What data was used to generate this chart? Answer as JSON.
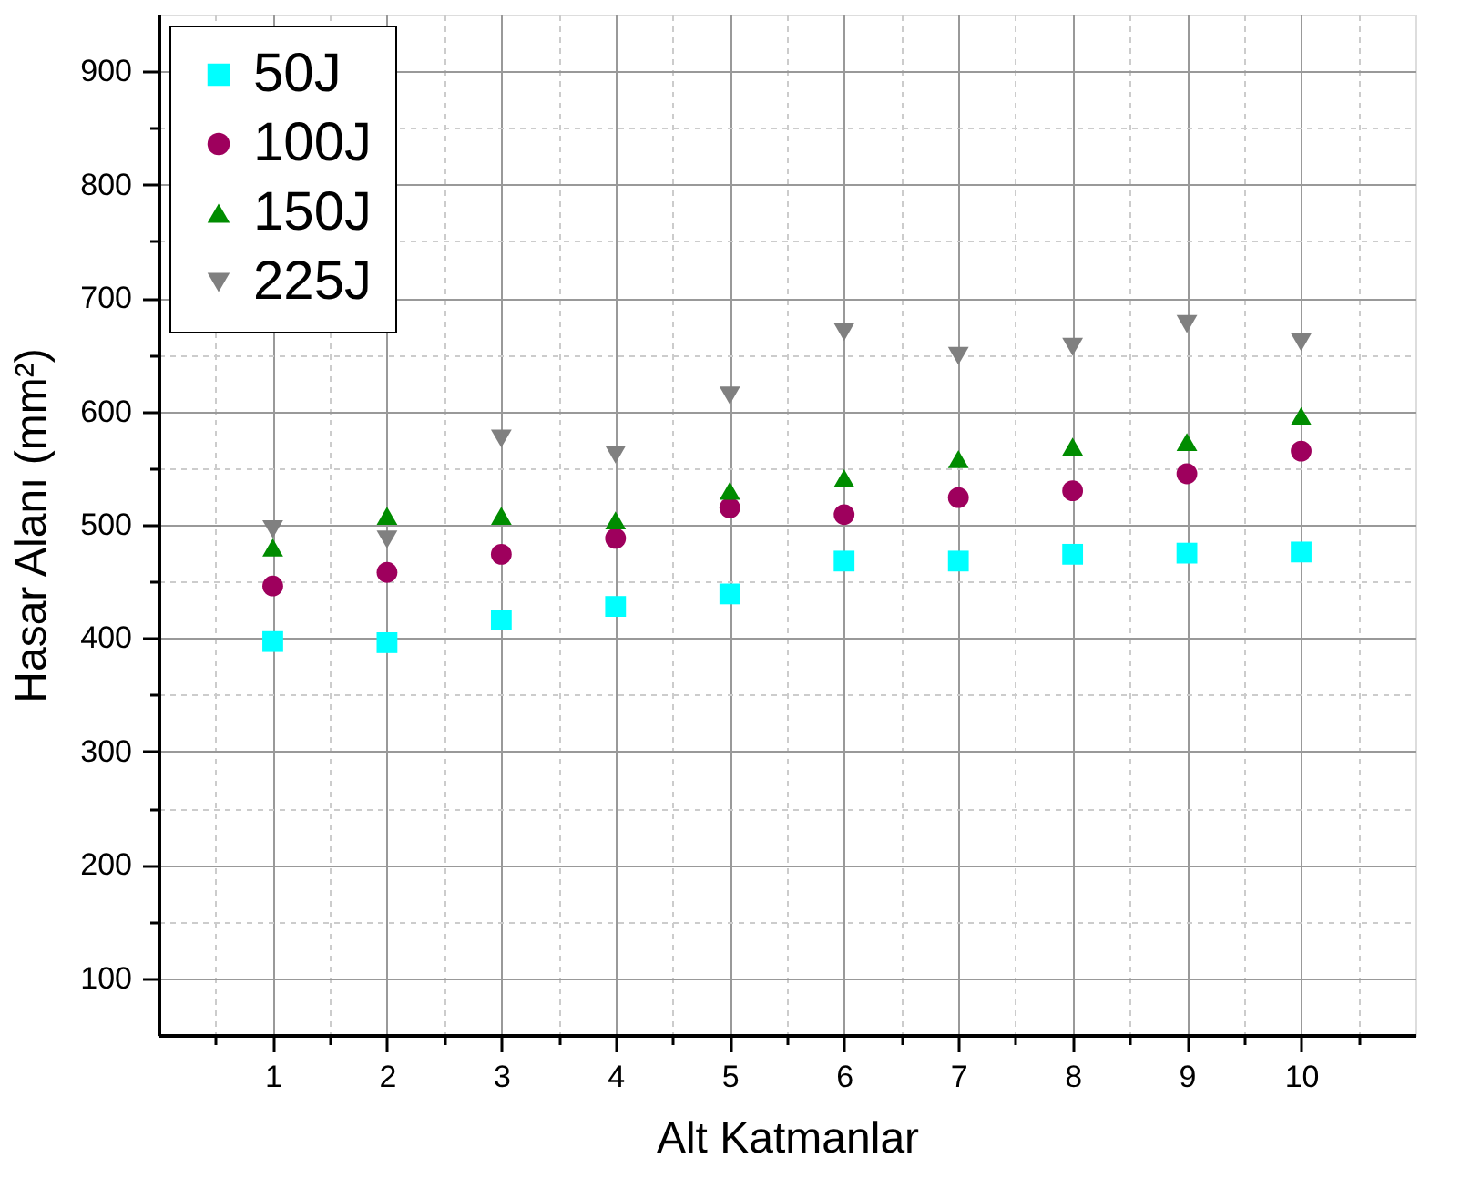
{
  "chart_data": {
    "type": "scatter",
    "xlabel": "Alt Katmanlar",
    "ylabel": "Hasar Alanı (mm²)",
    "x": [
      1,
      2,
      3,
      4,
      5,
      6,
      7,
      8,
      9,
      10
    ],
    "xlim": [
      0,
      11
    ],
    "ylim": [
      50,
      950
    ],
    "xticks": [
      {
        "value": 0.5,
        "label": null
      },
      1,
      {
        "value": 1.5,
        "label": null
      },
      2,
      {
        "value": 2.5,
        "label": null
      },
      3,
      {
        "value": 3.5,
        "label": null
      },
      4,
      {
        "value": 4.5,
        "label": null
      },
      5,
      {
        "value": 5.5,
        "label": null
      },
      6,
      {
        "value": 6.5,
        "label": null
      },
      7,
      {
        "value": 7.5,
        "label": null
      },
      8,
      {
        "value": 8.5,
        "label": null
      },
      9,
      {
        "value": 9.5,
        "label": null
      },
      10,
      {
        "value": 10.5,
        "label": null
      }
    ],
    "yticks": [
      100,
      {
        "value": 150,
        "label": null
      },
      200,
      {
        "value": 250,
        "label": null
      },
      300,
      {
        "value": 350,
        "label": null
      },
      400,
      {
        "value": 450,
        "label": null
      },
      500,
      {
        "value": 550,
        "label": null
      },
      600,
      {
        "value": 650,
        "label": null
      },
      700,
      {
        "value": 750,
        "label": null
      },
      800,
      {
        "value": 850,
        "label": null
      },
      900
    ],
    "grid": true,
    "legend": "top left",
    "series": [
      {
        "name": "50J",
        "color": "#00ffff",
        "marker": "square",
        "values": [
          397,
          396,
          416,
          428,
          439,
          468,
          468,
          474,
          475,
          476
        ]
      },
      {
        "name": "100J",
        "color": "#9e005d",
        "marker": "circle",
        "values": [
          446,
          458,
          474,
          488,
          515,
          509,
          524,
          530,
          545,
          565
        ]
      },
      {
        "name": "150J",
        "color": "#008c00",
        "marker": "triangle",
        "values": [
          480,
          508,
          508,
          504,
          530,
          541,
          558,
          569,
          573,
          596
        ]
      },
      {
        "name": "225J",
        "color": "#808080",
        "marker": "triangle-down",
        "values": [
          496,
          487,
          576,
          562,
          614,
          670,
          649,
          657,
          677,
          661
        ]
      }
    ]
  }
}
